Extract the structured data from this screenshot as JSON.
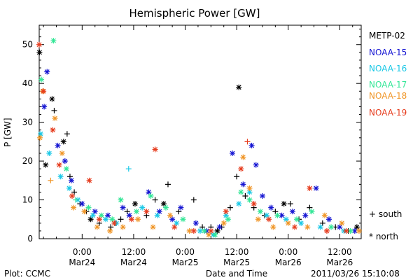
{
  "chart_data": {
    "type": "scatter",
    "title": "Hemispheric Power [GW]",
    "ylabel": "P [GW]",
    "xlabel": "Date and Time",
    "ylim": [
      0,
      55
    ],
    "xlim": [
      "2011-03-23 14:00",
      "2011-03-26 17:00"
    ],
    "yticks": [
      0,
      10,
      20,
      30,
      40,
      50
    ],
    "xticks": [
      {
        "t": "2011-03-24 00:00",
        "line1": "0:00",
        "line2": "Mar24"
      },
      {
        "t": "2011-03-24 12:00",
        "line1": "12:00",
        "line2": "Mar24"
      },
      {
        "t": "2011-03-25 00:00",
        "line1": "0:00",
        "line2": "Mar25"
      },
      {
        "t": "2011-03-25 12:00",
        "line1": "12:00",
        "line2": "Mar25"
      },
      {
        "t": "2011-03-26 00:00",
        "line1": "0:00",
        "line2": "Mar26"
      },
      {
        "t": "2011-03-26 12:00",
        "line1": "12:00",
        "line2": "Mar26"
      }
    ],
    "grid": false,
    "legend_position": "right",
    "series": [
      {
        "name": "METP-02",
        "color": "#000000",
        "points": [
          [
            "2011-03-23 14:04",
            48,
            "north"
          ],
          [
            "2011-03-23 15:30",
            19,
            "north"
          ],
          [
            "2011-03-23 17:00",
            36,
            "north"
          ],
          [
            "2011-03-23 17:30",
            33,
            "south"
          ],
          [
            "2011-03-23 19:40",
            25,
            "north"
          ],
          [
            "2011-03-23 20:30",
            27,
            "south"
          ],
          [
            "2011-03-23 21:10",
            16,
            "south"
          ],
          [
            "2011-03-23 22:10",
            12,
            "south"
          ],
          [
            "2011-03-23 23:30",
            9,
            "south"
          ],
          [
            "2011-03-24 01:00",
            7,
            "south"
          ],
          [
            "2011-03-24 02:00",
            5,
            "north"
          ],
          [
            "2011-03-24 04:00",
            4,
            "south"
          ],
          [
            "2011-03-24 06:40",
            3,
            "south"
          ],
          [
            "2011-03-24 07:40",
            4,
            "south"
          ],
          [
            "2011-03-24 09:00",
            5,
            "south"
          ],
          [
            "2011-03-24 10:30",
            7,
            "south"
          ],
          [
            "2011-03-24 12:20",
            9,
            "north"
          ],
          [
            "2011-03-24 15:00",
            6,
            "south"
          ],
          [
            "2011-03-24 17:00",
            10,
            "south"
          ],
          [
            "2011-03-24 19:00",
            9,
            "north"
          ],
          [
            "2011-03-24 20:00",
            14,
            "south"
          ],
          [
            "2011-03-24 22:30",
            7,
            "south"
          ],
          [
            "2011-03-25 02:00",
            10,
            "south"
          ],
          [
            "2011-03-25 04:00",
            3,
            "south"
          ],
          [
            "2011-03-25 06:00",
            3,
            "south"
          ],
          [
            "2011-03-25 07:30",
            2,
            "north"
          ],
          [
            "2011-03-25 08:30",
            3,
            "south"
          ],
          [
            "2011-03-25 10:30",
            8,
            "south"
          ],
          [
            "2011-03-25 12:00",
            16,
            "south"
          ],
          [
            "2011-03-25 12:30",
            39,
            "north"
          ],
          [
            "2011-03-25 14:00",
            11,
            "south"
          ],
          [
            "2011-03-25 16:00",
            8,
            "south"
          ],
          [
            "2011-03-25 18:30",
            6,
            "south"
          ],
          [
            "2011-03-25 21:00",
            7,
            "south"
          ],
          [
            "2011-03-25 23:00",
            9,
            "north"
          ],
          [
            "2011-03-26 00:30",
            9,
            "south"
          ],
          [
            "2011-03-26 02:30",
            5,
            "south"
          ],
          [
            "2011-03-26 05:00",
            8,
            "south"
          ],
          [
            "2011-03-26 08:00",
            4,
            "south"
          ],
          [
            "2011-03-26 11:00",
            3,
            "south"
          ],
          [
            "2011-03-26 14:00",
            2,
            "south"
          ],
          [
            "2011-03-26 16:00",
            3,
            "north"
          ]
        ]
      },
      {
        "name": "NOAA-15",
        "color": "#1414d2",
        "points": [
          [
            "2011-03-23 15:10",
            34,
            "north"
          ],
          [
            "2011-03-23 15:50",
            43,
            "north"
          ],
          [
            "2011-03-23 18:20",
            24,
            "north"
          ],
          [
            "2011-03-23 20:00",
            20,
            "north"
          ],
          [
            "2011-03-23 21:30",
            15,
            "north"
          ],
          [
            "2011-03-24 00:00",
            9,
            "north"
          ],
          [
            "2011-03-24 03:00",
            7,
            "north"
          ],
          [
            "2011-03-24 06:00",
            6,
            "north"
          ],
          [
            "2011-03-24 09:30",
            8,
            "north"
          ],
          [
            "2011-03-24 11:00",
            6,
            "north"
          ],
          [
            "2011-03-24 15:30",
            12,
            "north"
          ],
          [
            "2011-03-24 18:00",
            7,
            "north"
          ],
          [
            "2011-03-24 21:00",
            5,
            "north"
          ],
          [
            "2011-03-24 23:00",
            8,
            "north"
          ],
          [
            "2011-03-25 02:30",
            4,
            "north"
          ],
          [
            "2011-03-25 05:00",
            2,
            "north"
          ],
          [
            "2011-03-25 08:00",
            3,
            "north"
          ],
          [
            "2011-03-25 11:00",
            22,
            "north"
          ],
          [
            "2011-03-25 13:30",
            14,
            "north"
          ],
          [
            "2011-03-25 15:30",
            24,
            "north"
          ],
          [
            "2011-03-25 16:30",
            19,
            "north"
          ],
          [
            "2011-03-25 18:00",
            11,
            "north"
          ],
          [
            "2011-03-25 20:00",
            8,
            "north"
          ],
          [
            "2011-03-25 22:30",
            6,
            "north"
          ],
          [
            "2011-03-26 01:00",
            7,
            "north"
          ],
          [
            "2011-03-26 04:00",
            6,
            "north"
          ],
          [
            "2011-03-26 06:30",
            13,
            "north"
          ],
          [
            "2011-03-26 09:30",
            5,
            "north"
          ],
          [
            "2011-03-26 12:00",
            3,
            "north"
          ],
          [
            "2011-03-26 15:30",
            2,
            "north"
          ]
        ]
      },
      {
        "name": "NOAA-16",
        "color": "#19c8e6",
        "points": [
          [
            "2011-03-23 14:20",
            27,
            "north"
          ],
          [
            "2011-03-23 16:20",
            22,
            "north"
          ],
          [
            "2011-03-23 19:00",
            16,
            "north"
          ],
          [
            "2011-03-23 21:00",
            13,
            "north"
          ],
          [
            "2011-03-23 23:00",
            10,
            "north"
          ],
          [
            "2011-03-24 02:30",
            6,
            "north"
          ],
          [
            "2011-03-24 05:30",
            5,
            "north"
          ],
          [
            "2011-03-24 08:00",
            4,
            "north"
          ],
          [
            "2011-03-24 10:50",
            18,
            "south"
          ],
          [
            "2011-03-24 14:00",
            8,
            "north"
          ],
          [
            "2011-03-24 17:30",
            6,
            "north"
          ],
          [
            "2011-03-24 22:00",
            4,
            "north"
          ],
          [
            "2011-03-25 03:30",
            2,
            "north"
          ],
          [
            "2011-03-25 06:30",
            1,
            "north"
          ],
          [
            "2011-03-25 09:30",
            6,
            "north"
          ],
          [
            "2011-03-25 12:30",
            9,
            "north"
          ],
          [
            "2011-03-25 15:00",
            12,
            "north"
          ],
          [
            "2011-03-25 19:00",
            6,
            "north"
          ],
          [
            "2011-03-25 23:30",
            5,
            "north"
          ],
          [
            "2011-03-26 03:00",
            4,
            "north"
          ],
          [
            "2011-03-26 07:30",
            3,
            "north"
          ],
          [
            "2011-03-26 13:00",
            2,
            "north"
          ]
        ]
      },
      {
        "name": "NOAA-17",
        "color": "#32e696",
        "points": [
          [
            "2011-03-23 14:30",
            41,
            "north"
          ],
          [
            "2011-03-23 17:20",
            51,
            "north"
          ],
          [
            "2011-03-23 20:20",
            18,
            "north"
          ],
          [
            "2011-03-23 22:30",
            10,
            "south"
          ],
          [
            "2011-03-24 01:30",
            8,
            "north"
          ],
          [
            "2011-03-24 04:30",
            6,
            "north"
          ],
          [
            "2011-03-24 07:00",
            5,
            "north"
          ],
          [
            "2011-03-24 09:00",
            10,
            "north"
          ],
          [
            "2011-03-24 12:40",
            7,
            "north"
          ],
          [
            "2011-03-24 16:00",
            11,
            "north"
          ],
          [
            "2011-03-24 19:30",
            8,
            "north"
          ],
          [
            "2011-03-24 23:30",
            5,
            "north"
          ],
          [
            "2011-03-25 04:30",
            2,
            "north"
          ],
          [
            "2011-03-25 07:00",
            1,
            "north"
          ],
          [
            "2011-03-25 10:00",
            5,
            "north"
          ],
          [
            "2011-03-25 13:00",
            12,
            "north"
          ],
          [
            "2011-03-25 15:00",
            10,
            "north"
          ],
          [
            "2011-03-25 17:30",
            7,
            "north"
          ],
          [
            "2011-03-25 21:30",
            6,
            "north"
          ],
          [
            "2011-03-26 02:00",
            5,
            "north"
          ],
          [
            "2011-03-26 05:30",
            7,
            "north"
          ],
          [
            "2011-03-26 10:00",
            3,
            "north"
          ],
          [
            "2011-03-26 14:30",
            2,
            "north"
          ]
        ]
      },
      {
        "name": "NOAA-18",
        "color": "#f09628",
        "points": [
          [
            "2011-03-23 14:10",
            26,
            "north"
          ],
          [
            "2011-03-23 14:50",
            38,
            "north"
          ],
          [
            "2011-03-23 16:40",
            15,
            "south"
          ],
          [
            "2011-03-23 17:40",
            31,
            "north"
          ],
          [
            "2011-03-23 19:20",
            22,
            "north"
          ],
          [
            "2011-03-23 22:00",
            8,
            "north"
          ],
          [
            "2011-03-24 00:30",
            7,
            "north"
          ],
          [
            "2011-03-24 03:30",
            3,
            "north"
          ],
          [
            "2011-03-24 06:30",
            2,
            "north"
          ],
          [
            "2011-03-24 09:30",
            3,
            "north"
          ],
          [
            "2011-03-24 13:00",
            5,
            "north"
          ],
          [
            "2011-03-24 16:30",
            3,
            "north"
          ],
          [
            "2011-03-24 20:30",
            6,
            "north"
          ],
          [
            "2011-03-25 01:00",
            2,
            "north"
          ],
          [
            "2011-03-25 05:30",
            1,
            "north"
          ],
          [
            "2011-03-25 09:00",
            4,
            "north"
          ],
          [
            "2011-03-25 13:30",
            21,
            "north"
          ],
          [
            "2011-03-25 15:00",
            13,
            "north"
          ],
          [
            "2011-03-25 17:00",
            5,
            "north"
          ],
          [
            "2011-03-25 20:30",
            3,
            "north"
          ],
          [
            "2011-03-26 00:00",
            4,
            "north"
          ],
          [
            "2011-03-26 04:30",
            3,
            "north"
          ],
          [
            "2011-03-26 08:30",
            6,
            "north"
          ],
          [
            "2011-03-26 12:30",
            4,
            "north"
          ],
          [
            "2011-03-26 16:30",
            2,
            "north"
          ]
        ]
      },
      {
        "name": "NOAA-19",
        "color": "#e63c1e",
        "points": [
          [
            "2011-03-23 14:00",
            50,
            "north"
          ],
          [
            "2011-03-23 15:00",
            38,
            "north"
          ],
          [
            "2011-03-23 17:10",
            28,
            "north"
          ],
          [
            "2011-03-23 18:40",
            19,
            "north"
          ],
          [
            "2011-03-23 21:40",
            11,
            "north"
          ],
          [
            "2011-03-24 01:40",
            15,
            "north"
          ],
          [
            "2011-03-24 04:00",
            5,
            "north"
          ],
          [
            "2011-03-24 07:30",
            4,
            "north"
          ],
          [
            "2011-03-24 11:30",
            5,
            "north"
          ],
          [
            "2011-03-24 15:00",
            7,
            "north"
          ],
          [
            "2011-03-24 17:00",
            23,
            "north"
          ],
          [
            "2011-03-24 21:30",
            3,
            "north"
          ],
          [
            "2011-03-25 02:00",
            2,
            "north"
          ],
          [
            "2011-03-25 06:00",
            2,
            "north"
          ],
          [
            "2011-03-25 09:30",
            7,
            "north"
          ],
          [
            "2011-03-25 13:00",
            18,
            "north"
          ],
          [
            "2011-03-25 14:30",
            25,
            "south"
          ],
          [
            "2011-03-25 16:00",
            9,
            "north"
          ],
          [
            "2011-03-25 19:30",
            5,
            "north"
          ],
          [
            "2011-03-26 01:30",
            3,
            "north"
          ],
          [
            "2011-03-26 05:00",
            13,
            "north"
          ],
          [
            "2011-03-26 09:00",
            2,
            "north"
          ],
          [
            "2011-03-26 13:30",
            2,
            "north"
          ]
        ]
      }
    ],
    "symbol_legend": [
      {
        "symbol": "+",
        "label": "south"
      },
      {
        "symbol": "*",
        "label": "north"
      }
    ]
  },
  "footer": {
    "left": "Plot: CCMC",
    "right": "2011/03/26 15:10:08"
  }
}
